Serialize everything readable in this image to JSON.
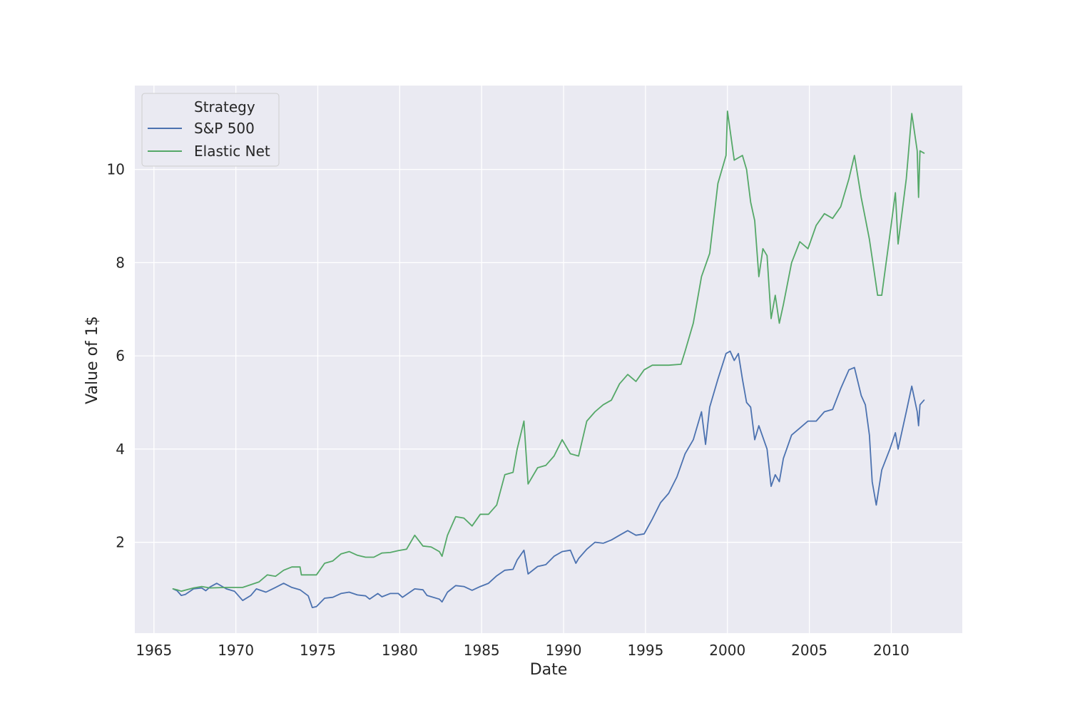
{
  "chart_data": {
    "type": "line",
    "xlabel": "Date",
    "ylabel": "Value of 1$",
    "xlim": [
      "1963-11",
      "2014-05"
    ],
    "ylim": [
      0.05,
      11.8
    ],
    "grid": true,
    "x_ticks": [
      "1965",
      "1970",
      "1975",
      "1980",
      "1985",
      "1990",
      "1995",
      "2000",
      "2005",
      "2010"
    ],
    "y_ticks": [
      2,
      4,
      6,
      8,
      10
    ],
    "legend": {
      "title": "Strategy",
      "placement": "top-left"
    },
    "series": [
      {
        "name": "S&P 500",
        "color": "#4c72b0",
        "points": [
          [
            "1966-03",
            1.0
          ],
          [
            "1966-06",
            0.96
          ],
          [
            "1966-09",
            0.86
          ],
          [
            "1966-12",
            0.88
          ],
          [
            "1967-06",
            1.0
          ],
          [
            "1967-12",
            1.02
          ],
          [
            "1968-03",
            0.96
          ],
          [
            "1968-06",
            1.04
          ],
          [
            "1968-11",
            1.12
          ],
          [
            "1969-06",
            1.0
          ],
          [
            "1969-12",
            0.95
          ],
          [
            "1970-06",
            0.75
          ],
          [
            "1970-12",
            0.86
          ],
          [
            "1971-04",
            1.0
          ],
          [
            "1971-11",
            0.93
          ],
          [
            "1972-06",
            1.03
          ],
          [
            "1972-12",
            1.12
          ],
          [
            "1973-06",
            1.03
          ],
          [
            "1973-12",
            0.98
          ],
          [
            "1974-06",
            0.85
          ],
          [
            "1974-09",
            0.6
          ],
          [
            "1974-12",
            0.62
          ],
          [
            "1975-06",
            0.8
          ],
          [
            "1975-12",
            0.82
          ],
          [
            "1976-06",
            0.9
          ],
          [
            "1976-12",
            0.93
          ],
          [
            "1977-06",
            0.87
          ],
          [
            "1977-12",
            0.85
          ],
          [
            "1978-03",
            0.78
          ],
          [
            "1978-09",
            0.9
          ],
          [
            "1978-12",
            0.83
          ],
          [
            "1979-06",
            0.9
          ],
          [
            "1979-12",
            0.9
          ],
          [
            "1980-03",
            0.82
          ],
          [
            "1980-12",
            1.0
          ],
          [
            "1981-06",
            0.98
          ],
          [
            "1981-09",
            0.86
          ],
          [
            "1982-06",
            0.78
          ],
          [
            "1982-08",
            0.72
          ],
          [
            "1982-12",
            0.93
          ],
          [
            "1983-06",
            1.07
          ],
          [
            "1983-12",
            1.05
          ],
          [
            "1984-06",
            0.97
          ],
          [
            "1984-12",
            1.05
          ],
          [
            "1985-06",
            1.12
          ],
          [
            "1985-12",
            1.28
          ],
          [
            "1986-06",
            1.4
          ],
          [
            "1986-12",
            1.42
          ],
          [
            "1987-03",
            1.62
          ],
          [
            "1987-08",
            1.83
          ],
          [
            "1987-11",
            1.32
          ],
          [
            "1988-06",
            1.48
          ],
          [
            "1988-12",
            1.52
          ],
          [
            "1989-06",
            1.7
          ],
          [
            "1989-12",
            1.8
          ],
          [
            "1990-06",
            1.83
          ],
          [
            "1990-10",
            1.55
          ],
          [
            "1990-12",
            1.65
          ],
          [
            "1991-06",
            1.85
          ],
          [
            "1991-12",
            2.0
          ],
          [
            "1992-06",
            1.98
          ],
          [
            "1992-12",
            2.05
          ],
          [
            "1993-06",
            2.15
          ],
          [
            "1993-12",
            2.25
          ],
          [
            "1994-06",
            2.15
          ],
          [
            "1994-12",
            2.18
          ],
          [
            "1995-06",
            2.5
          ],
          [
            "1995-12",
            2.85
          ],
          [
            "1996-06",
            3.05
          ],
          [
            "1996-12",
            3.4
          ],
          [
            "1997-06",
            3.9
          ],
          [
            "1997-12",
            4.2
          ],
          [
            "1998-06",
            4.8
          ],
          [
            "1998-09",
            4.1
          ],
          [
            "1998-12",
            4.9
          ],
          [
            "1999-06",
            5.5
          ],
          [
            "1999-12",
            6.05
          ],
          [
            "2000-03",
            6.1
          ],
          [
            "2000-06",
            5.9
          ],
          [
            "2000-09",
            6.05
          ],
          [
            "2000-12",
            5.5
          ],
          [
            "2001-03",
            5.0
          ],
          [
            "2001-06",
            4.9
          ],
          [
            "2001-09",
            4.2
          ],
          [
            "2001-12",
            4.5
          ],
          [
            "2002-06",
            4.0
          ],
          [
            "2002-09",
            3.2
          ],
          [
            "2002-12",
            3.45
          ],
          [
            "2003-03",
            3.3
          ],
          [
            "2003-06",
            3.8
          ],
          [
            "2003-12",
            4.3
          ],
          [
            "2004-06",
            4.45
          ],
          [
            "2004-12",
            4.6
          ],
          [
            "2005-06",
            4.6
          ],
          [
            "2005-12",
            4.8
          ],
          [
            "2006-06",
            4.85
          ],
          [
            "2006-12",
            5.3
          ],
          [
            "2007-06",
            5.7
          ],
          [
            "2007-10",
            5.75
          ],
          [
            "2008-03",
            5.15
          ],
          [
            "2008-06",
            4.95
          ],
          [
            "2008-09",
            4.3
          ],
          [
            "2008-11",
            3.3
          ],
          [
            "2009-02",
            2.8
          ],
          [
            "2009-06",
            3.55
          ],
          [
            "2009-12",
            4.0
          ],
          [
            "2010-04",
            4.35
          ],
          [
            "2010-06",
            4.0
          ],
          [
            "2010-12",
            4.8
          ],
          [
            "2011-04",
            5.35
          ],
          [
            "2011-08",
            4.8
          ],
          [
            "2011-09",
            4.5
          ],
          [
            "2011-10",
            4.95
          ],
          [
            "2012-01",
            5.05
          ]
        ]
      },
      {
        "name": "Elastic Net",
        "color": "#55a868",
        "points": [
          [
            "1966-03",
            1.0
          ],
          [
            "1966-06",
            0.98
          ],
          [
            "1966-09",
            0.95
          ],
          [
            "1967-06",
            1.02
          ],
          [
            "1967-12",
            1.05
          ],
          [
            "1968-06",
            1.02
          ],
          [
            "1969-06",
            1.03
          ],
          [
            "1970-06",
            1.03
          ],
          [
            "1971-06",
            1.15
          ],
          [
            "1971-12",
            1.3
          ],
          [
            "1972-06",
            1.27
          ],
          [
            "1972-12",
            1.4
          ],
          [
            "1973-06",
            1.47
          ],
          [
            "1973-12",
            1.47
          ],
          [
            "1974-01",
            1.3
          ],
          [
            "1974-12",
            1.3
          ],
          [
            "1975-06",
            1.55
          ],
          [
            "1975-12",
            1.6
          ],
          [
            "1976-06",
            1.75
          ],
          [
            "1976-12",
            1.8
          ],
          [
            "1977-06",
            1.72
          ],
          [
            "1977-12",
            1.68
          ],
          [
            "1978-06",
            1.68
          ],
          [
            "1978-12",
            1.77
          ],
          [
            "1979-06",
            1.78
          ],
          [
            "1979-12",
            1.82
          ],
          [
            "1980-06",
            1.85
          ],
          [
            "1980-12",
            2.15
          ],
          [
            "1981-06",
            1.92
          ],
          [
            "1981-12",
            1.9
          ],
          [
            "1982-06",
            1.8
          ],
          [
            "1982-08",
            1.7
          ],
          [
            "1982-12",
            2.15
          ],
          [
            "1983-06",
            2.55
          ],
          [
            "1983-12",
            2.52
          ],
          [
            "1984-06",
            2.35
          ],
          [
            "1984-12",
            2.6
          ],
          [
            "1985-06",
            2.6
          ],
          [
            "1985-12",
            2.8
          ],
          [
            "1986-06",
            3.45
          ],
          [
            "1986-12",
            3.5
          ],
          [
            "1987-03",
            4.0
          ],
          [
            "1987-08",
            4.6
          ],
          [
            "1987-11",
            3.25
          ],
          [
            "1988-06",
            3.6
          ],
          [
            "1988-12",
            3.65
          ],
          [
            "1989-06",
            3.85
          ],
          [
            "1989-12",
            4.2
          ],
          [
            "1990-06",
            3.9
          ],
          [
            "1990-12",
            3.85
          ],
          [
            "1991-06",
            4.6
          ],
          [
            "1991-12",
            4.8
          ],
          [
            "1992-06",
            4.95
          ],
          [
            "1992-12",
            5.05
          ],
          [
            "1993-06",
            5.4
          ],
          [
            "1993-12",
            5.6
          ],
          [
            "1994-06",
            5.45
          ],
          [
            "1994-12",
            5.7
          ],
          [
            "1995-06",
            5.8
          ],
          [
            "1996-06",
            5.8
          ],
          [
            "1997-03",
            5.82
          ],
          [
            "1997-06",
            6.1
          ],
          [
            "1997-12",
            6.7
          ],
          [
            "1998-06",
            7.7
          ],
          [
            "1998-12",
            8.2
          ],
          [
            "1999-06",
            9.7
          ],
          [
            "1999-12",
            10.3
          ],
          [
            "2000-01",
            11.25
          ],
          [
            "2000-06",
            10.2
          ],
          [
            "2000-12",
            10.3
          ],
          [
            "2001-03",
            10.0
          ],
          [
            "2001-06",
            9.3
          ],
          [
            "2001-09",
            8.9
          ],
          [
            "2001-12",
            7.7
          ],
          [
            "2002-03",
            8.3
          ],
          [
            "2002-06",
            8.15
          ],
          [
            "2002-09",
            6.8
          ],
          [
            "2002-12",
            7.3
          ],
          [
            "2003-03",
            6.7
          ],
          [
            "2003-06",
            7.1
          ],
          [
            "2003-12",
            8.0
          ],
          [
            "2004-06",
            8.45
          ],
          [
            "2004-12",
            8.3
          ],
          [
            "2005-06",
            8.8
          ],
          [
            "2005-12",
            9.05
          ],
          [
            "2006-06",
            8.95
          ],
          [
            "2006-12",
            9.2
          ],
          [
            "2007-06",
            9.8
          ],
          [
            "2007-10",
            10.3
          ],
          [
            "2008-03",
            9.4
          ],
          [
            "2008-06",
            8.95
          ],
          [
            "2008-09",
            8.5
          ],
          [
            "2008-12",
            7.9
          ],
          [
            "2009-03",
            7.3
          ],
          [
            "2009-06",
            7.3
          ],
          [
            "2009-12",
            8.6
          ],
          [
            "2010-04",
            9.5
          ],
          [
            "2010-06",
            8.4
          ],
          [
            "2010-12",
            9.8
          ],
          [
            "2011-04",
            11.2
          ],
          [
            "2011-08",
            10.4
          ],
          [
            "2011-09",
            9.4
          ],
          [
            "2011-10",
            10.4
          ],
          [
            "2012-01",
            10.35
          ]
        ]
      }
    ]
  }
}
